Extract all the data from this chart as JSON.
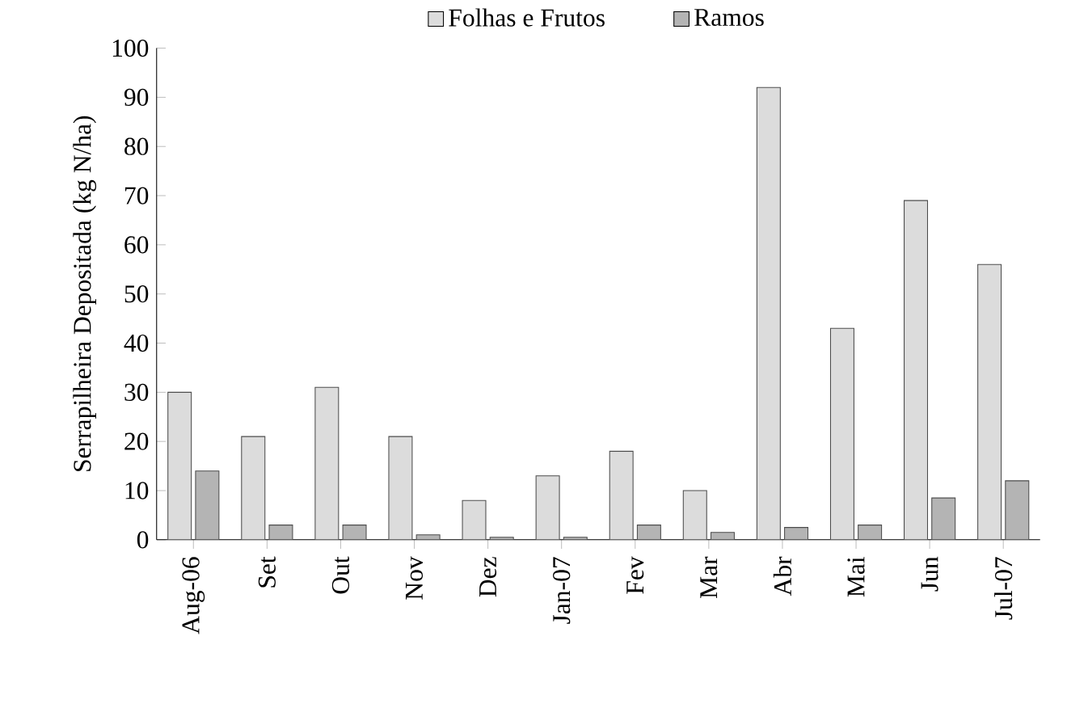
{
  "chart_data": {
    "type": "bar",
    "ylabel": "Serrapilheira Depositada (kg N/ha)",
    "categories": [
      "Aug-06",
      "Set",
      "Out",
      "Nov",
      "Dez",
      "Jan-07",
      "Fev",
      "Mar",
      "Abr",
      "Mai",
      "Jun",
      "Jul-07"
    ],
    "series": [
      {
        "name": "Folhas e Frutos",
        "color": "#dcdcdc",
        "values": [
          30,
          21,
          31,
          21,
          8,
          13,
          18,
          10,
          92,
          43,
          69,
          56
        ]
      },
      {
        "name": "Ramos",
        "color": "#b4b4b4",
        "values": [
          14,
          3,
          3,
          1,
          0.5,
          0.5,
          3,
          1.5,
          2.5,
          3,
          8.5,
          12
        ]
      }
    ],
    "ylim": [
      0,
      100
    ],
    "yticks": [
      0,
      10,
      20,
      30,
      40,
      50,
      60,
      70,
      80,
      90,
      100
    ],
    "grid": false,
    "legend": "top"
  }
}
